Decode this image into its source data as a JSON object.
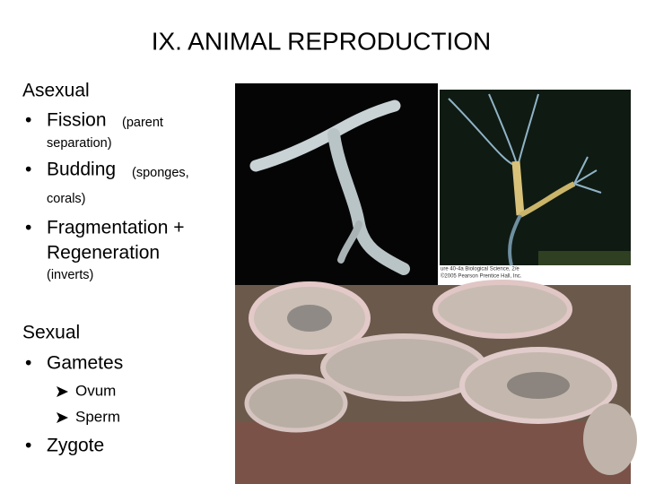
{
  "title": "IX.  ANIMAL REPRODUCTION",
  "asexual": {
    "heading": "Asexual",
    "items": [
      {
        "text": "Fission",
        "note": [
          "(parent",
          "separation)"
        ]
      },
      {
        "text": "Budding",
        "note": [
          "(sponges,",
          "corals)"
        ]
      },
      {
        "text": [
          "Fragmentation +",
          "Regeneration"
        ],
        "note": [
          "(inverts)"
        ]
      }
    ]
  },
  "sexual": {
    "heading": "Sexual",
    "items": [
      {
        "text": "Gametes",
        "subitems": [
          "Ovum",
          "Sperm"
        ]
      },
      {
        "text": "Zygote"
      }
    ]
  },
  "figure_credit": [
    "ure 40-4a Biological Science, 2/e",
    "©2005 Pearson Prentice Hall, Inc."
  ]
}
